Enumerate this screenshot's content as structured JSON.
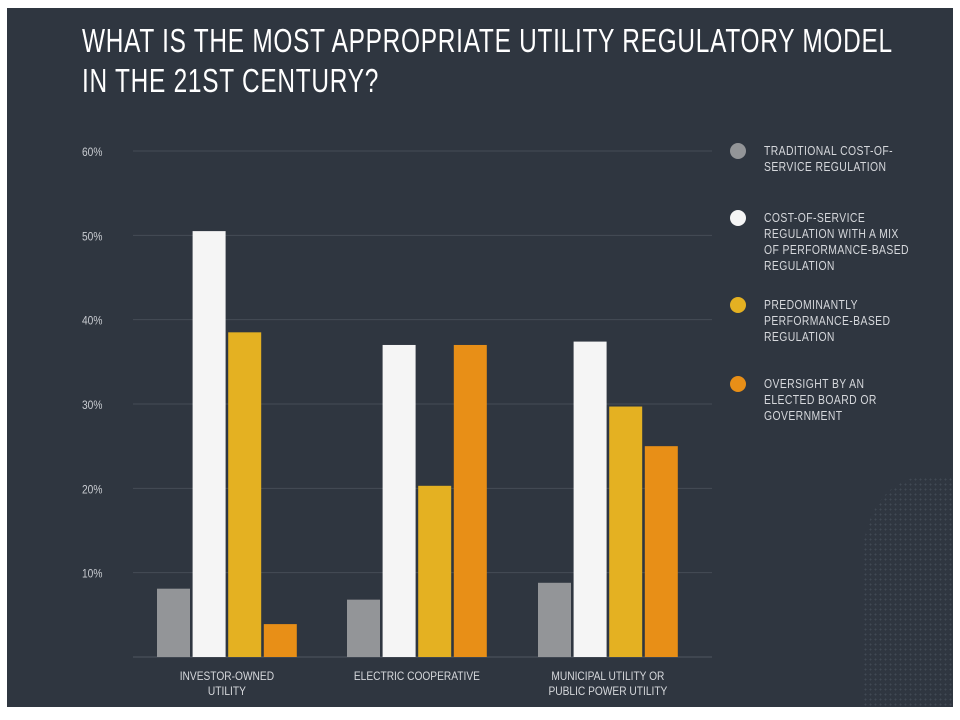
{
  "title": {
    "line1": "WHAT IS THE MOST APPROPRIATE UTILITY REGULATORY MODEL",
    "line2": "IN THE 21ST CENTURY?"
  },
  "chart_data": {
    "type": "bar",
    "title": "WHAT IS THE MOST APPROPRIATE UTILITY REGULATORY MODEL IN THE 21ST CENTURY?",
    "categories": [
      [
        "INVESTOR-OWNED",
        "UTILITY"
      ],
      [
        "ELECTRIC COOPERATIVE"
      ],
      [
        "MUNICIPAL UTILITY OR",
        "PUBLIC POWER UTILITY"
      ]
    ],
    "yticks": [
      "10%",
      "20%",
      "30%",
      "40%",
      "50%",
      "60%"
    ],
    "ylim": [
      0,
      60
    ],
    "grid": true,
    "legend_placement": "right",
    "series": [
      {
        "name": [
          "TRADITIONAL COST-OF-",
          "SERVICE REGULATION"
        ],
        "color": "#939598",
        "values": [
          8.1,
          6.8,
          8.8
        ]
      },
      {
        "name": [
          "COST-OF-SERVICE",
          "REGULATION WITH A MIX",
          "OF PERFORMANCE-BASED",
          "REGULATION"
        ],
        "color": "#f5f5f5",
        "values": [
          50.5,
          37,
          37.4
        ]
      },
      {
        "name": [
          "PREDOMINANTLY",
          "PERFORMANCE-BASED",
          "REGULATION"
        ],
        "color": "#e4b122",
        "values": [
          38.5,
          20.3,
          29.7
        ]
      },
      {
        "name": [
          "OVERSIGHT BY AN",
          "ELECTED BOARD OR",
          "GOVERNMENT"
        ],
        "color": "#e88f17",
        "values": [
          3.9,
          37,
          25
        ]
      }
    ]
  },
  "colors": {
    "background": "#2f3640",
    "gridline": "#454c56"
  }
}
